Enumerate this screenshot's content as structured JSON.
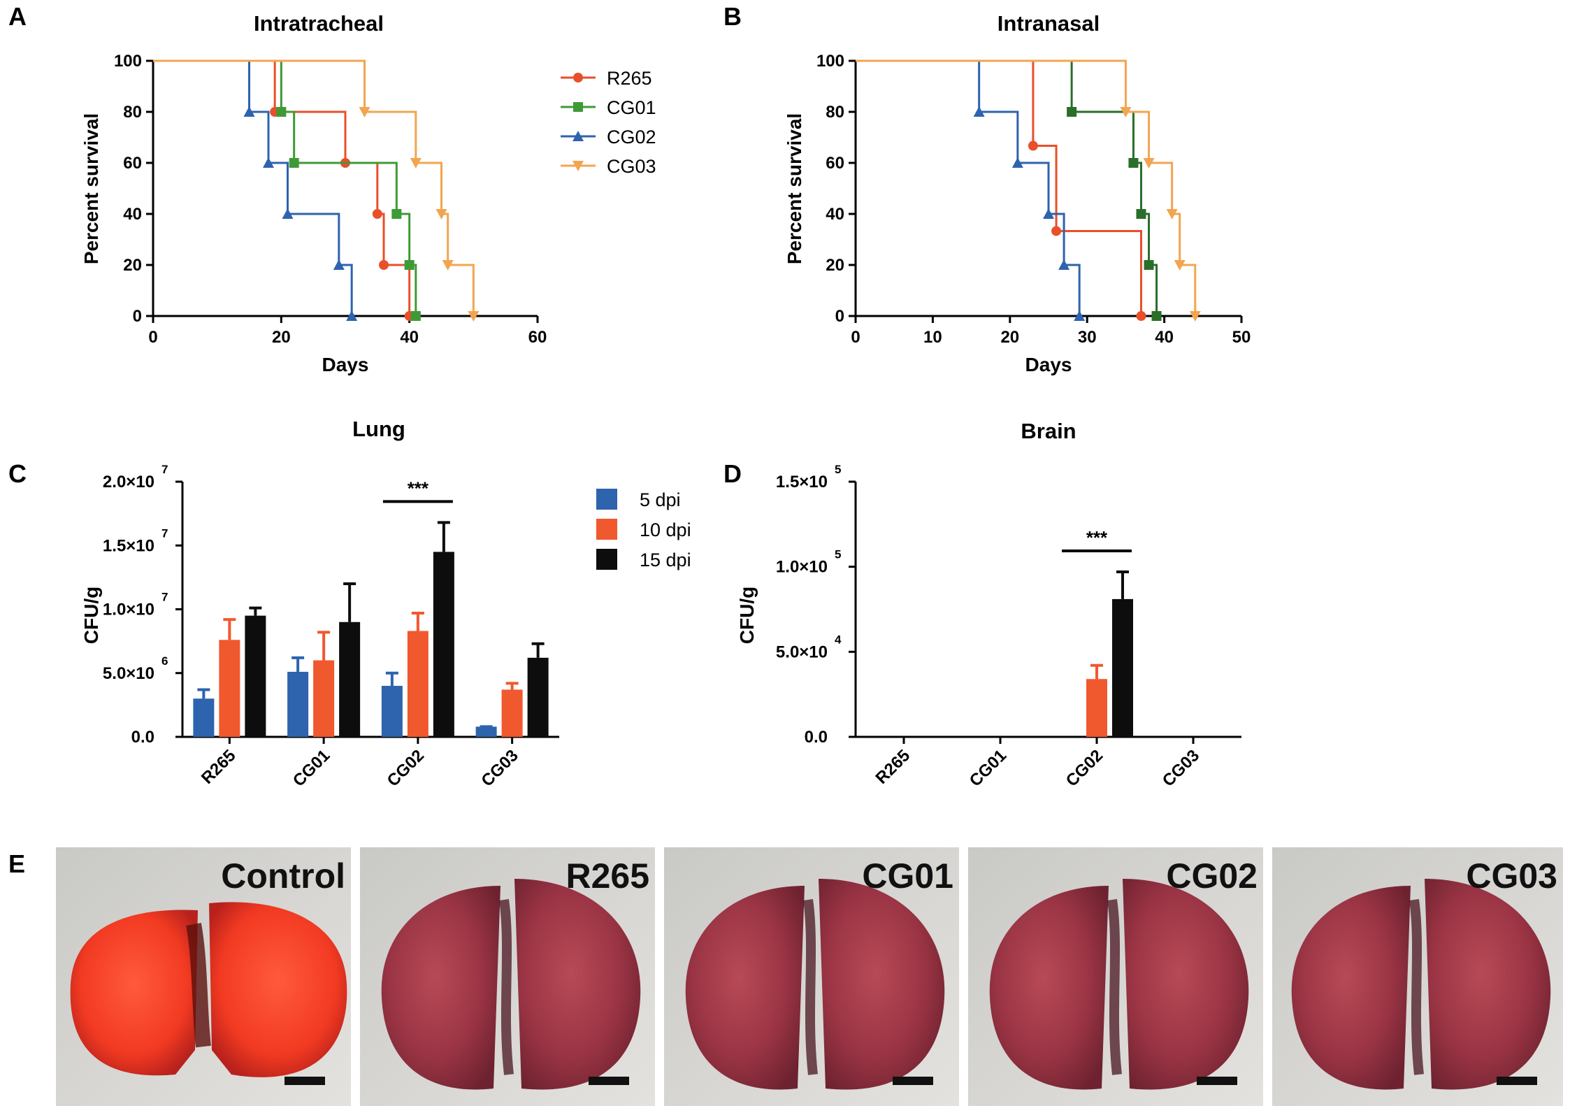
{
  "panels": {
    "A": "A",
    "B": "B",
    "C": "C",
    "D": "D",
    "E": "E"
  },
  "colors": {
    "R265": "#e8502a",
    "CG01": "#3e9a36",
    "CG01_B": "#2a6e2a",
    "CG02": "#2e63ae",
    "CG03": "#f2a550",
    "dpi5": "#2e63ae",
    "dpi10": "#f0582e",
    "dpi15": "#0d0d0d"
  },
  "chart_data": [
    {
      "id": "A",
      "type": "line",
      "subtype": "kaplan-meier",
      "title": "Intratracheal",
      "xlabel": "Days",
      "ylabel": "Percent survival",
      "xlim": [
        0,
        60
      ],
      "ylim": [
        0,
        100
      ],
      "xticks": [
        "0",
        "20",
        "40",
        "60"
      ],
      "yticks": [
        "0",
        "20",
        "40",
        "60",
        "80",
        "100"
      ],
      "legend": "top-right",
      "series": [
        {
          "name": "R265",
          "marker": "circle",
          "steps": [
            [
              0,
              100
            ],
            [
              19,
              80
            ],
            [
              30,
              60
            ],
            [
              35,
              40
            ],
            [
              36,
              20
            ],
            [
              40,
              0
            ]
          ]
        },
        {
          "name": "CG01",
          "marker": "square",
          "steps": [
            [
              0,
              100
            ],
            [
              20,
              80
            ],
            [
              22,
              60
            ],
            [
              38,
              40
            ],
            [
              40,
              20
            ],
            [
              41,
              0
            ]
          ]
        },
        {
          "name": "CG02",
          "marker": "triangle-up",
          "steps": [
            [
              0,
              100
            ],
            [
              15,
              80
            ],
            [
              18,
              60
            ],
            [
              21,
              40
            ],
            [
              29,
              20
            ],
            [
              31,
              0
            ]
          ]
        },
        {
          "name": "CG03",
          "marker": "triangle-down",
          "steps": [
            [
              0,
              100
            ],
            [
              33,
              80
            ],
            [
              41,
              60
            ],
            [
              45,
              40
            ],
            [
              46,
              20
            ],
            [
              50,
              0
            ]
          ]
        }
      ]
    },
    {
      "id": "B",
      "type": "line",
      "subtype": "kaplan-meier",
      "title": "Intranasal",
      "xlabel": "Days",
      "ylabel": "Percent survival",
      "xlim": [
        0,
        50
      ],
      "ylim": [
        0,
        100
      ],
      "xticks": [
        "0",
        "10",
        "20",
        "30",
        "40",
        "50"
      ],
      "yticks": [
        "0",
        "20",
        "40",
        "60",
        "80",
        "100"
      ],
      "series": [
        {
          "name": "R265",
          "marker": "circle",
          "steps": [
            [
              0,
              100
            ],
            [
              23,
              66.7
            ],
            [
              26,
              33.3
            ],
            [
              37,
              0
            ]
          ]
        },
        {
          "name": "CG01",
          "marker": "square",
          "steps": [
            [
              0,
              100
            ],
            [
              28,
              80
            ],
            [
              36,
              60
            ],
            [
              37,
              40
            ],
            [
              38,
              20
            ],
            [
              39,
              0
            ]
          ]
        },
        {
          "name": "CG02",
          "marker": "triangle-up",
          "steps": [
            [
              0,
              100
            ],
            [
              16,
              80
            ],
            [
              21,
              60
            ],
            [
              25,
              40
            ],
            [
              27,
              20
            ],
            [
              29,
              0
            ]
          ]
        },
        {
          "name": "CG03",
          "marker": "triangle-down",
          "steps": [
            [
              0,
              100
            ],
            [
              35,
              80
            ],
            [
              38,
              60
            ],
            [
              41,
              40
            ],
            [
              42,
              20
            ],
            [
              44,
              0
            ]
          ]
        }
      ]
    },
    {
      "id": "C",
      "type": "bar",
      "title": "Lung",
      "ylabel": "CFU/g",
      "categories": [
        "R265",
        "CG01",
        "CG02",
        "CG03"
      ],
      "yticks": [
        {
          "value": 0,
          "label": "0.0",
          "exp": ""
        },
        {
          "value": 5000000,
          "label": "5.0×10",
          "exp": "6"
        },
        {
          "value": 10000000,
          "label": "1.0×10",
          "exp": "7"
        },
        {
          "value": 15000000,
          "label": "1.5×10",
          "exp": "7"
        },
        {
          "value": 20000000,
          "label": "2.0×10",
          "exp": "7"
        }
      ],
      "ylim": [
        0,
        20000000
      ],
      "legend": "top-right",
      "series": [
        {
          "name": "5 dpi",
          "values": [
            3000000,
            5100000,
            4000000,
            800000
          ],
          "errors": [
            700000,
            1100000,
            1000000,
            0
          ]
        },
        {
          "name": "10 dpi",
          "values": [
            7600000,
            6000000,
            8300000,
            3700000
          ],
          "errors": [
            1600000,
            2200000,
            1400000,
            500000
          ]
        },
        {
          "name": "15 dpi",
          "values": [
            9500000,
            9000000,
            14500000,
            6200000
          ],
          "errors": [
            600000,
            3000000,
            2300000,
            1100000
          ]
        }
      ],
      "annotation": {
        "label": "***",
        "category": "CG02"
      }
    },
    {
      "id": "D",
      "type": "bar",
      "title": "Brain",
      "ylabel": "CFU/g",
      "categories": [
        "R265",
        "CG01",
        "CG02",
        "CG03"
      ],
      "yticks": [
        {
          "value": 0,
          "label": "0.0",
          "exp": ""
        },
        {
          "value": 50000,
          "label": "5.0×10",
          "exp": "4"
        },
        {
          "value": 100000,
          "label": "1.0×10",
          "exp": "5"
        },
        {
          "value": 150000,
          "label": "1.5×10",
          "exp": "5"
        }
      ],
      "ylim": [
        0,
        150000
      ],
      "series": [
        {
          "name": "5 dpi",
          "values": [
            0,
            0,
            0,
            0
          ],
          "errors": [
            0,
            0,
            0,
            0
          ]
        },
        {
          "name": "10 dpi",
          "values": [
            0,
            0,
            34000,
            0
          ],
          "errors": [
            0,
            0,
            8000,
            0
          ]
        },
        {
          "name": "15 dpi",
          "values": [
            0,
            0,
            81000,
            0
          ],
          "errors": [
            0,
            0,
            16000,
            0
          ]
        }
      ],
      "annotation": {
        "label": "***",
        "category": "CG02"
      }
    }
  ],
  "photos": [
    {
      "label": "Control",
      "tone": "control"
    },
    {
      "label": "R265",
      "tone": "infected"
    },
    {
      "label": "CG01",
      "tone": "infected"
    },
    {
      "label": "CG02",
      "tone": "infected"
    },
    {
      "label": "CG03",
      "tone": "infected"
    }
  ]
}
